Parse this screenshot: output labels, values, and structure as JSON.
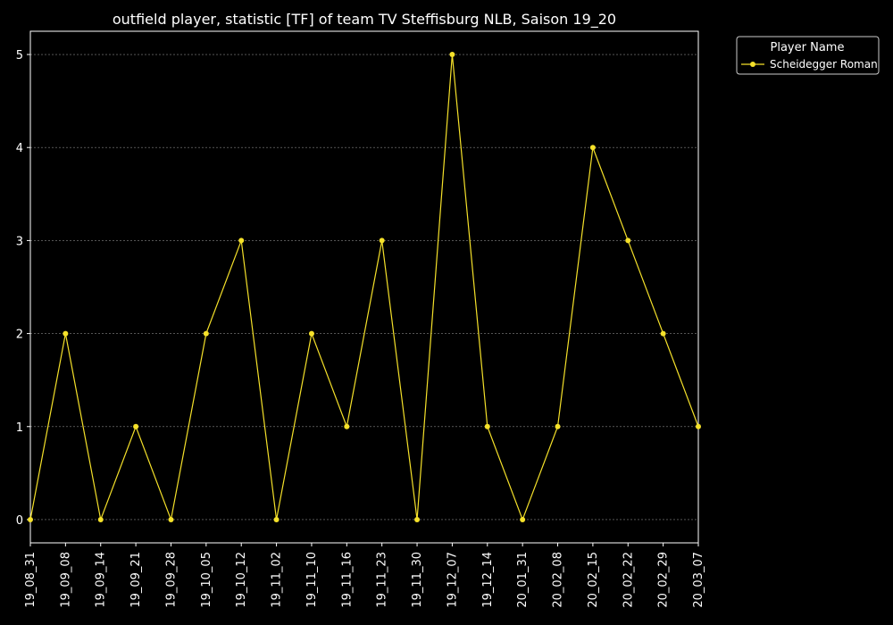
{
  "chart_data": {
    "type": "line",
    "title": "outfield player, statistic [TF] of team TV Steffisburg NLB, Saison 19_20",
    "xlabel": "",
    "ylabel": "",
    "categories": [
      "19_08_31",
      "19_09_08",
      "19_09_14",
      "19_09_21",
      "19_09_28",
      "19_10_05",
      "19_10_12",
      "19_11_02",
      "19_11_10",
      "19_11_16",
      "19_11_23",
      "19_11_30",
      "19_12_07",
      "19_12_14",
      "20_01_31",
      "20_02_08",
      "20_02_15",
      "20_02_22",
      "20_02_29",
      "20_03_07"
    ],
    "series": [
      {
        "name": "Scheidegger Roman",
        "values": [
          0,
          2,
          0,
          1,
          0,
          2,
          3,
          0,
          2,
          1,
          3,
          0,
          5,
          1,
          0,
          1,
          4,
          3,
          2,
          1
        ],
        "color": "#f5e12a"
      }
    ],
    "yticks": [
      "0",
      "1",
      "2",
      "3",
      "4",
      "5"
    ],
    "ylim": [
      -0.25,
      5.25
    ],
    "grid": true,
    "legend": {
      "title": "Player Name",
      "placement": "outside-top-right"
    },
    "colors": {
      "background": "#000000",
      "text": "#ffffff",
      "grid": "#888888",
      "line": "#f5e12a"
    }
  }
}
